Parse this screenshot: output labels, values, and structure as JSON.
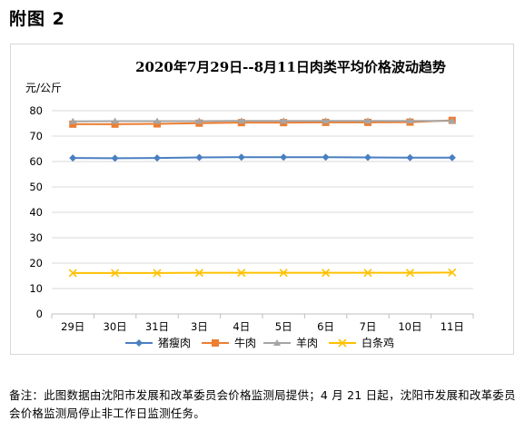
{
  "figure_label": "附图 2",
  "note": "备注：此图数据由沈阳市发展和改革委员会价格监测局提供；4 月 21 日起，沈阳市发展和改革委员会价格监测局停止非工作日监测任务。",
  "colors": {
    "pork": "#4a7fc1",
    "beef": "#ed7d31",
    "mutton": "#a5a5a5",
    "chicken": "#ffc000",
    "grid": "#d9d9d9",
    "axis_text": "#595959"
  },
  "chart_data": {
    "type": "line",
    "title": "2020年7月29日--8月11日肉类平均价格波动趋势",
    "ylabel": "元/公斤",
    "xlabel": "",
    "categories": [
      "29日",
      "30日",
      "31日",
      "3日",
      "4日",
      "5日",
      "6日",
      "7日",
      "10日",
      "11日"
    ],
    "ylim": [
      0,
      80
    ],
    "yticks": [
      0,
      10,
      20,
      30,
      40,
      50,
      60,
      70,
      80
    ],
    "grid": "horizontal",
    "legend_position": "bottom",
    "series": [
      {
        "name": "猪瘦肉",
        "marker": "diamond",
        "color_key": "pork",
        "values": [
          61.4,
          61.3,
          61.4,
          61.6,
          61.7,
          61.7,
          61.7,
          61.6,
          61.5,
          61.5
        ]
      },
      {
        "name": "牛肉",
        "marker": "square",
        "color_key": "beef",
        "values": [
          74.7,
          74.7,
          74.8,
          75.1,
          75.3,
          75.3,
          75.4,
          75.4,
          75.5,
          76.2
        ]
      },
      {
        "name": "羊肉",
        "marker": "triangle",
        "color_key": "mutton",
        "values": [
          75.8,
          75.9,
          75.9,
          75.9,
          76.0,
          76.0,
          76.0,
          76.0,
          76.0,
          76.0
        ]
      },
      {
        "name": "白条鸡",
        "marker": "x",
        "color_key": "chicken",
        "values": [
          16.1,
          16.1,
          16.1,
          16.2,
          16.2,
          16.2,
          16.2,
          16.2,
          16.2,
          16.3
        ]
      }
    ]
  }
}
